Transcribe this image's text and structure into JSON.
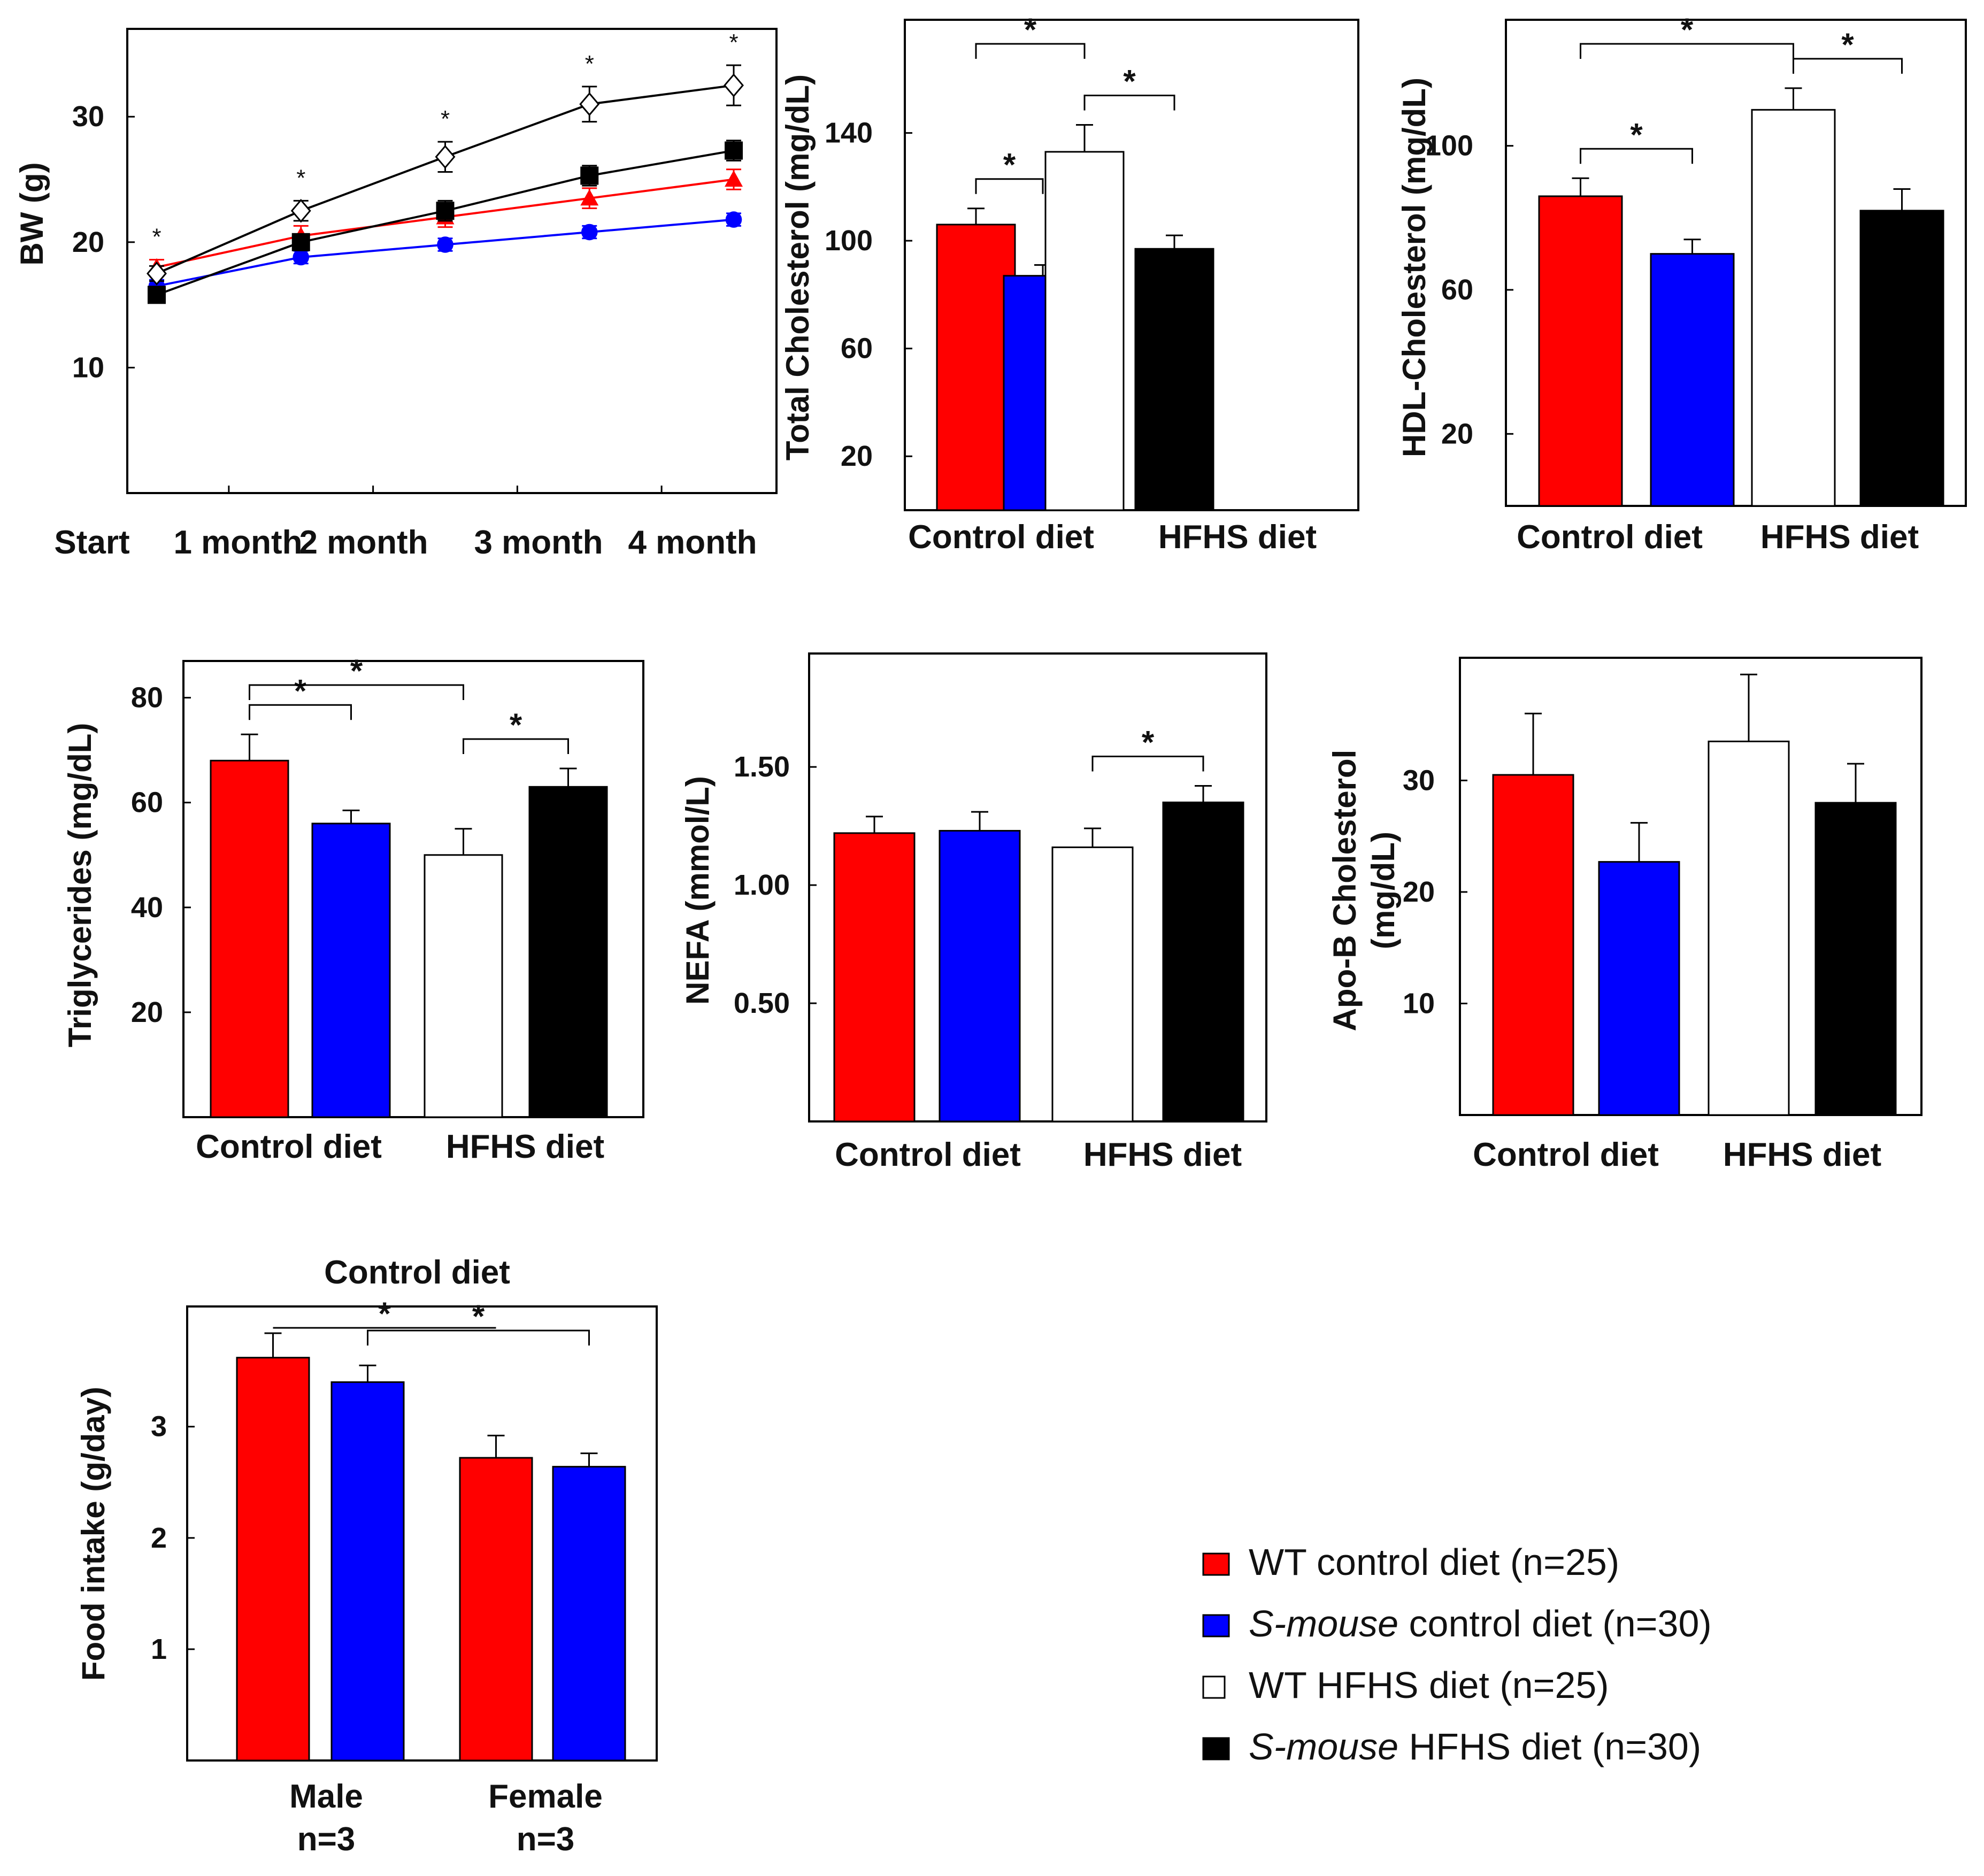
{
  "legend": {
    "items": [
      {
        "italic": "",
        "text": "WT control diet (n=25)",
        "color": "#ff0000",
        "border": "#000000"
      },
      {
        "italic": "S-mouse",
        "text": " control diet (n=30)",
        "color": "#0000ff",
        "border": "#000000"
      },
      {
        "italic": "",
        "text": "WT HFHS diet (n=25)",
        "color": "#ffffff",
        "border": "#000000"
      },
      {
        "italic": "S-mouse",
        "text": " HFHS diet (n=30)",
        "color": "#000000",
        "border": "#000000"
      }
    ]
  },
  "chart_data": [
    {
      "id": "bw",
      "type": "line",
      "ylabel": "BW (g)",
      "x": [
        "Start",
        "1 month",
        "2 month",
        "3 month",
        "4 month"
      ],
      "ylim": [
        0,
        37
      ],
      "yticks": [
        10,
        20,
        30
      ],
      "series": [
        {
          "name": "WT control diet",
          "color": "#ff0000",
          "marker": "triangle",
          "values": [
            18,
            20.5,
            22,
            23.5,
            25
          ],
          "errors": [
            0.6,
            0.8,
            0.8,
            0.8,
            0.8
          ]
        },
        {
          "name": "S-mouse control diet",
          "color": "#0000ff",
          "marker": "circle",
          "values": [
            16.5,
            18.8,
            19.8,
            20.8,
            21.8
          ],
          "errors": [
            0.5,
            0.5,
            0.5,
            0.5,
            0.5
          ]
        },
        {
          "name": "WT HFHS diet",
          "color": "#000000",
          "marker": "diamond-open",
          "values": [
            17.5,
            22.5,
            26.8,
            31,
            32.5
          ],
          "errors": [
            0.6,
            0.8,
            1.2,
            1.4,
            1.6
          ]
        },
        {
          "name": "S-mouse HFHS diet",
          "color": "#000000",
          "marker": "square",
          "values": [
            15.8,
            20,
            22.5,
            25.3,
            27.3
          ],
          "errors": [
            0.5,
            0.6,
            0.8,
            0.8,
            0.8
          ]
        }
      ],
      "stars": [
        "*",
        "*",
        "*",
        "*",
        "*"
      ]
    },
    {
      "id": "tc",
      "type": "bar",
      "ylabel": "Total Cholesterol (mg/dL)",
      "ylim": [
        0,
        182
      ],
      "yticks": [
        20,
        60,
        100,
        140
      ],
      "groups": [
        "Control diet",
        "HFHS diet"
      ],
      "values": [
        106,
        87,
        133,
        97
      ],
      "errors": [
        6,
        4,
        10,
        5
      ],
      "brackets": [
        {
          "from": 0,
          "to": 1,
          "label": "*"
        },
        {
          "from": 0,
          "to": 2,
          "label": "*"
        },
        {
          "from": 2,
          "to": 3,
          "label": "*"
        }
      ]
    },
    {
      "id": "hdl",
      "type": "bar",
      "ylabel": "HDL-Cholesterol (mg/dL)",
      "ylim": [
        0,
        135
      ],
      "yticks": [
        20,
        60,
        100
      ],
      "groups": [
        "Control diet",
        "HFHS diet"
      ],
      "values": [
        86,
        70,
        110,
        82
      ],
      "errors": [
        5,
        4,
        6,
        6
      ],
      "brackets": [
        {
          "from": 0,
          "to": 1,
          "label": "*"
        },
        {
          "from": 0,
          "to": 2,
          "label": "*"
        },
        {
          "from": 2,
          "to": 3,
          "label": "*"
        }
      ]
    },
    {
      "id": "tg",
      "type": "bar",
      "ylabel": "Triglycerides (mg/dL)",
      "ylim": [
        0,
        87
      ],
      "yticks": [
        20,
        40,
        60,
        80
      ],
      "groups": [
        "Control diet",
        "HFHS diet"
      ],
      "values": [
        68,
        56,
        50,
        63
      ],
      "errors": [
        5,
        2.5,
        5,
        3.5
      ],
      "brackets": [
        {
          "from": 0,
          "to": 1,
          "label": "*"
        },
        {
          "from": 0,
          "to": 2,
          "label": "*"
        },
        {
          "from": 2,
          "to": 3,
          "label": "*"
        }
      ]
    },
    {
      "id": "nefa",
      "type": "bar",
      "ylabel": "NEFA (mmol/L)",
      "ylim": [
        0,
        1.98
      ],
      "yticks": [
        0.5,
        1.0,
        1.5
      ],
      "tickLabels": [
        "0.50",
        "1.00",
        "1.50"
      ],
      "groups": [
        "Control diet",
        "HFHS diet"
      ],
      "values": [
        1.22,
        1.23,
        1.16,
        1.35
      ],
      "errors": [
        0.07,
        0.08,
        0.08,
        0.07
      ],
      "brackets": [
        {
          "from": 2,
          "to": 3,
          "label": "*"
        }
      ]
    },
    {
      "id": "apob",
      "type": "bar",
      "ylabel_lines": [
        "Apo-B Cholesterol",
        "(mg/dL)"
      ],
      "ylim": [
        0,
        41
      ],
      "yticks": [
        10,
        20,
        30
      ],
      "groups": [
        "Control diet",
        "HFHS diet"
      ],
      "values": [
        30.5,
        22.7,
        33.5,
        28
      ],
      "errors": [
        5.5,
        3.5,
        6,
        3.5
      ],
      "brackets": []
    },
    {
      "id": "food",
      "type": "bar",
      "title": "Control diet",
      "ylabel": "Food intake (g/day)",
      "ylim": [
        0,
        4.08
      ],
      "yticks": [
        1,
        2,
        3
      ],
      "groups": [
        "Male",
        "Female"
      ],
      "group_sub": [
        "n=3",
        "n=3"
      ],
      "values": [
        3.62,
        3.4,
        2.72,
        2.64
      ],
      "errors": [
        0.22,
        0.15,
        0.2,
        0.12
      ],
      "colors": [
        "#ff0000",
        "#0000ff",
        "#ff0000",
        "#0000ff"
      ],
      "brackets": [
        {
          "from": 0,
          "to": 2,
          "label": "*",
          "style": "line"
        },
        {
          "from": 1,
          "to": 3,
          "label": "*"
        }
      ]
    }
  ]
}
